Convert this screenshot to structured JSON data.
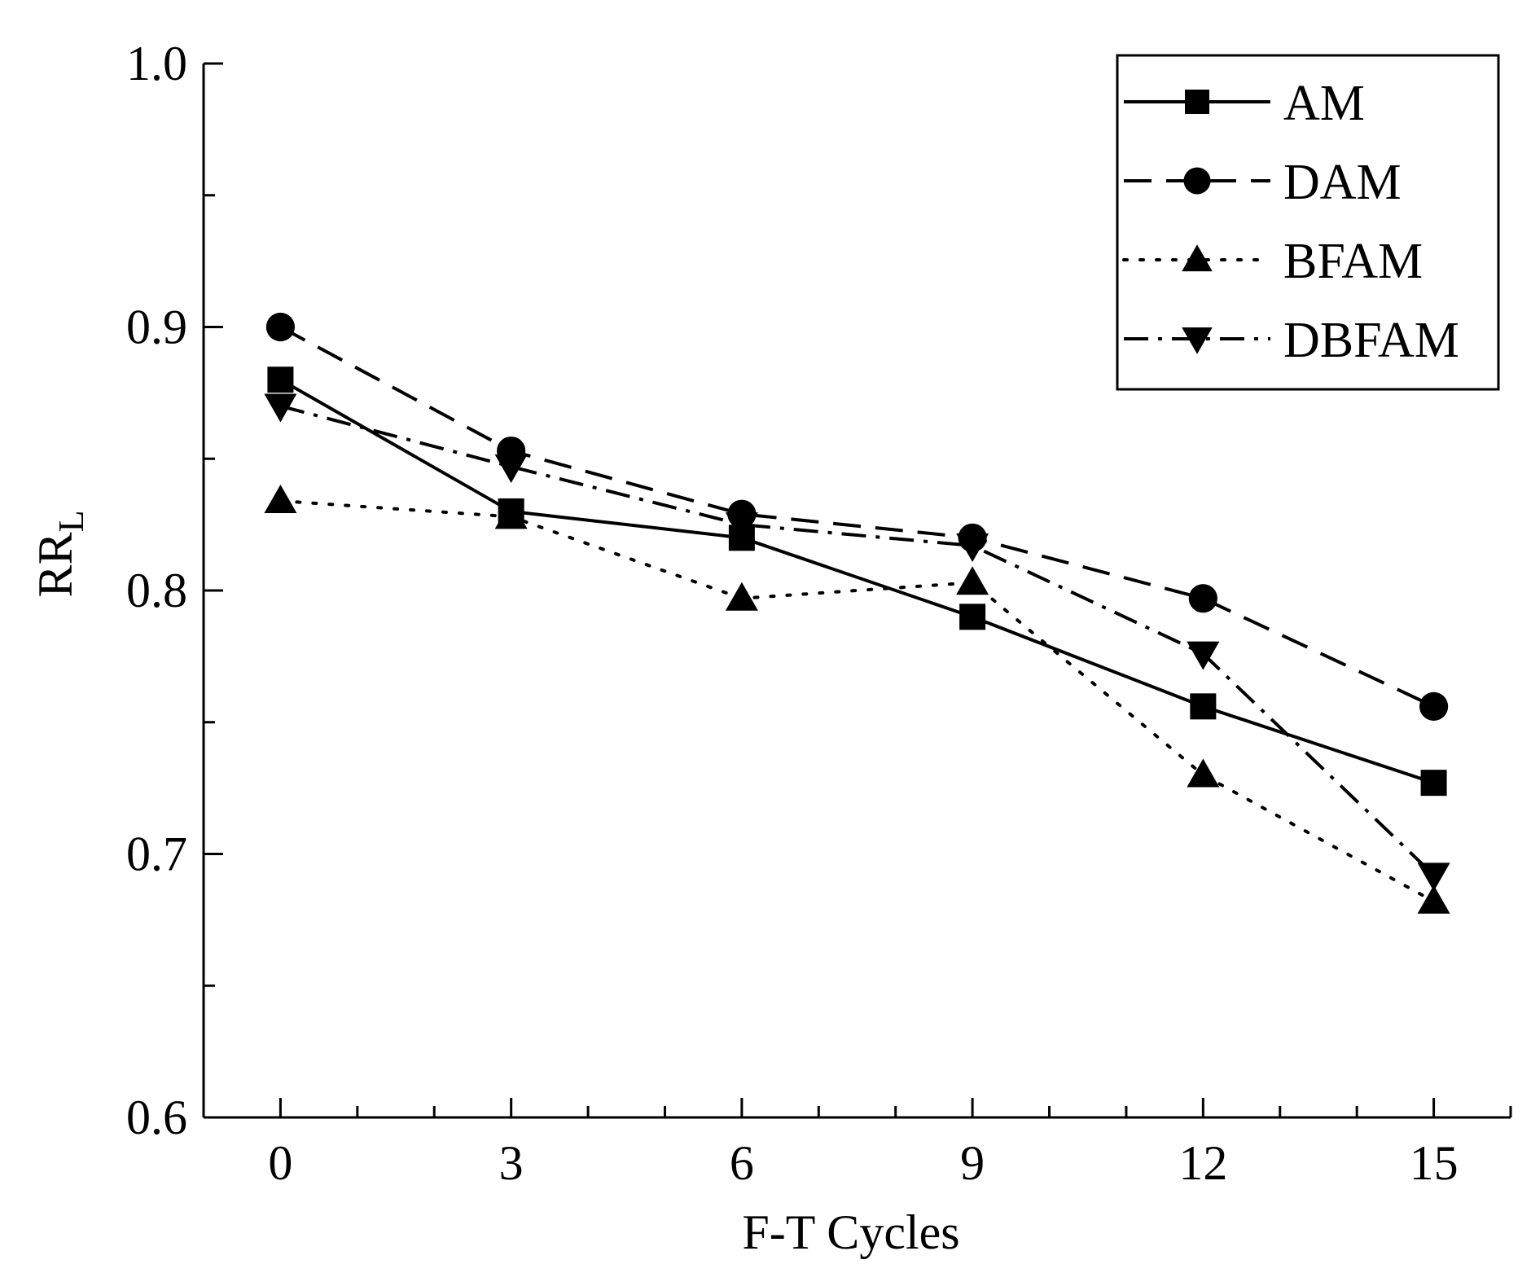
{
  "chart_data": {
    "type": "line",
    "title": "",
    "xlabel": "F-T Cycles",
    "ylabel": "RR",
    "ylabel_subscript": "L",
    "x": [
      0,
      3,
      6,
      9,
      12,
      15
    ],
    "xticks": [
      "0",
      "3",
      "6",
      "9",
      "12",
      "15"
    ],
    "yticks": [
      "0.6",
      "0.7",
      "0.8",
      "0.9",
      "1.0"
    ],
    "xlim": [
      -1,
      16
    ],
    "ylim": [
      0.6,
      1.0
    ],
    "grid": false,
    "legend_position": "top-right",
    "series": [
      {
        "name": "AM",
        "line": "solid",
        "marker": "square",
        "values": [
          0.88,
          0.83,
          0.82,
          0.79,
          0.756,
          0.727
        ]
      },
      {
        "name": "DAM",
        "line": "dashed",
        "marker": "circle",
        "values": [
          0.9,
          0.853,
          0.829,
          0.82,
          0.797,
          0.756
        ]
      },
      {
        "name": "BFAM",
        "line": "dotted",
        "marker": "triangle-up",
        "values": [
          0.834,
          0.828,
          0.797,
          0.803,
          0.73,
          0.682
        ]
      },
      {
        "name": "DBFAM",
        "line": "dashdot",
        "marker": "triangle-down",
        "values": [
          0.87,
          0.847,
          0.825,
          0.817,
          0.776,
          0.692
        ]
      }
    ]
  }
}
